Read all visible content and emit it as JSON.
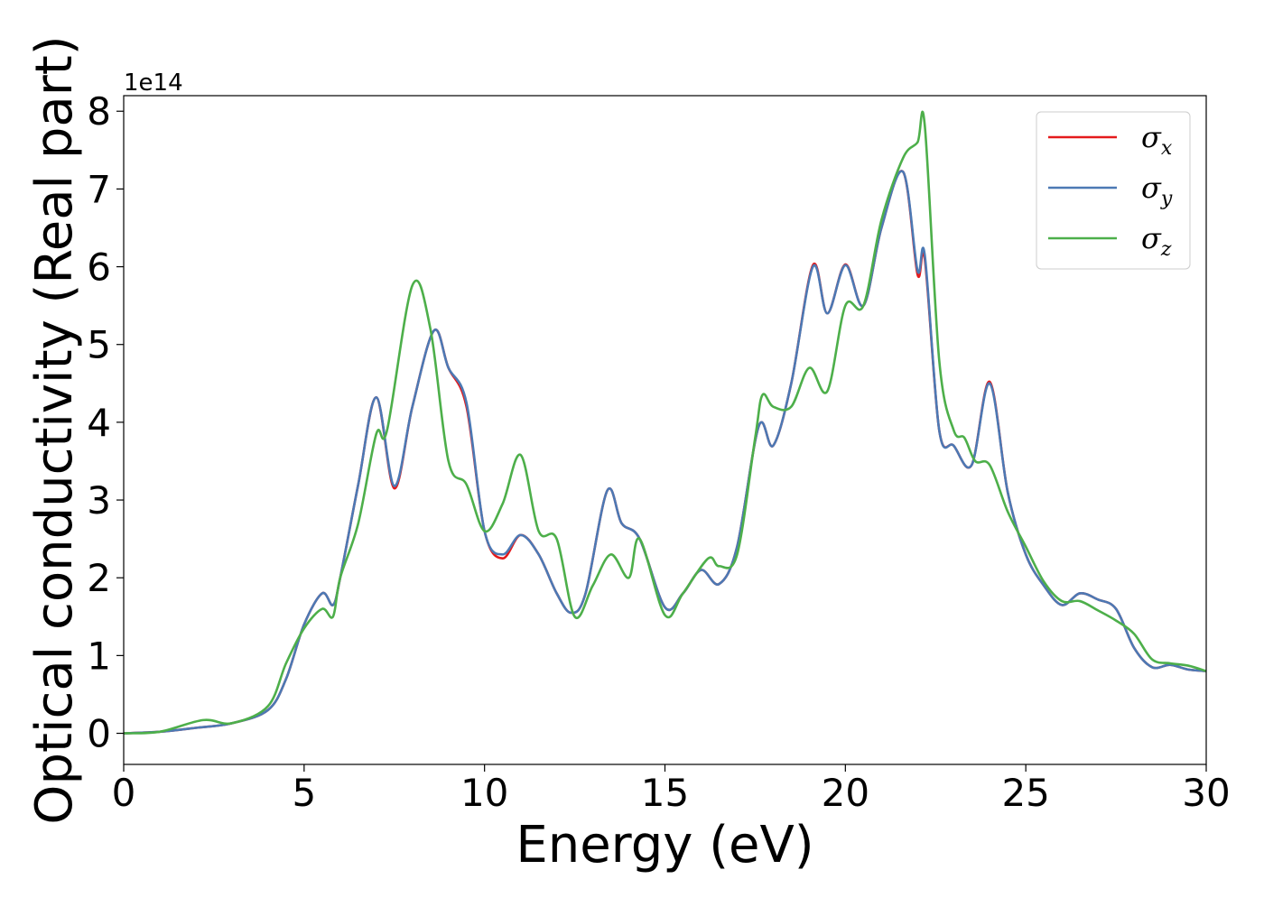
{
  "chart_data": {
    "type": "line",
    "xlabel": "Energy (eV)",
    "ylabel": "Optical conductivity (Real part)",
    "y_offset_text": "1e14",
    "xlim": [
      0,
      30
    ],
    "ylim": [
      -0.4,
      8.2
    ],
    "x_ticks": [
      0,
      5,
      10,
      15,
      20,
      25,
      30
    ],
    "y_ticks": [
      0,
      1,
      2,
      3,
      4,
      5,
      6,
      7,
      8
    ],
    "grid": false,
    "legend_position": "top-right",
    "series": [
      {
        "name": "σx",
        "name_base": "σ",
        "name_sub": "x",
        "color": "#e41a1c",
        "x": [
          0,
          1,
          2,
          3,
          4,
          4.5,
          5,
          5.5,
          5.8,
          6.0,
          6.5,
          7.0,
          7.5,
          8.0,
          8.6,
          9.0,
          9.5,
          10.0,
          10.5,
          11.0,
          11.5,
          12.0,
          12.4,
          12.8,
          13.4,
          13.8,
          14.3,
          15.0,
          15.5,
          16.0,
          16.5,
          17.0,
          17.6,
          18.0,
          18.5,
          19.1,
          19.5,
          20.0,
          20.5,
          21.0,
          21.6,
          22.0,
          22.2,
          22.6,
          23.0,
          23.5,
          24.0,
          24.5,
          25.0,
          25.5,
          26.0,
          26.5,
          27.0,
          27.5,
          28.0,
          28.5,
          29.0,
          29.5,
          30.0
        ],
        "values": [
          0,
          0.02,
          0.07,
          0.13,
          0.3,
          0.7,
          1.4,
          1.8,
          1.65,
          2.0,
          3.2,
          4.32,
          3.15,
          4.2,
          5.18,
          4.7,
          4.2,
          2.6,
          2.25,
          2.55,
          2.3,
          1.8,
          1.55,
          1.8,
          3.12,
          2.7,
          2.5,
          1.62,
          1.8,
          2.1,
          1.92,
          2.4,
          3.95,
          3.7,
          4.5,
          6.02,
          5.4,
          6.03,
          5.5,
          6.5,
          7.22,
          5.9,
          6.1,
          3.9,
          3.7,
          3.45,
          4.52,
          3.1,
          2.3,
          1.9,
          1.65,
          1.8,
          1.72,
          1.6,
          1.1,
          0.85,
          0.88,
          0.82,
          0.8
        ]
      },
      {
        "name": "σy",
        "name_base": "σ",
        "name_sub": "y",
        "color": "#4c79b4",
        "x": [
          0,
          1,
          2,
          3,
          4,
          4.5,
          5,
          5.5,
          5.8,
          6.0,
          6.5,
          7.0,
          7.5,
          8.0,
          8.6,
          9.0,
          9.5,
          10.0,
          10.5,
          11.0,
          11.5,
          12.0,
          12.4,
          12.8,
          13.4,
          13.8,
          14.3,
          15.0,
          15.5,
          16.0,
          16.5,
          17.0,
          17.6,
          18.0,
          18.5,
          19.1,
          19.5,
          20.0,
          20.5,
          21.0,
          21.6,
          22.0,
          22.2,
          22.6,
          23.0,
          23.5,
          24.0,
          24.5,
          25.0,
          25.5,
          26.0,
          26.5,
          27.0,
          27.5,
          28.0,
          28.5,
          29.0,
          29.5,
          30.0
        ],
        "values": [
          0,
          0.02,
          0.07,
          0.13,
          0.3,
          0.7,
          1.4,
          1.8,
          1.65,
          2.0,
          3.2,
          4.32,
          3.18,
          4.2,
          5.18,
          4.7,
          4.25,
          2.6,
          2.3,
          2.55,
          2.3,
          1.8,
          1.55,
          1.8,
          3.12,
          2.7,
          2.5,
          1.62,
          1.8,
          2.1,
          1.92,
          2.4,
          3.95,
          3.7,
          4.5,
          6.0,
          5.4,
          6.02,
          5.5,
          6.5,
          7.22,
          5.95,
          6.15,
          3.9,
          3.7,
          3.45,
          4.5,
          3.1,
          2.3,
          1.9,
          1.65,
          1.8,
          1.72,
          1.6,
          1.1,
          0.85,
          0.88,
          0.82,
          0.8
        ]
      },
      {
        "name": "σz",
        "name_base": "σ",
        "name_sub": "z",
        "color": "#4daf4a",
        "x": [
          0,
          1,
          2.2,
          3,
          4,
          4.5,
          5,
          5.5,
          5.8,
          6.0,
          6.5,
          7.0,
          7.3,
          8.0,
          8.5,
          9.0,
          9.5,
          10.0,
          10.5,
          11.0,
          11.5,
          12.0,
          12.5,
          13.0,
          13.5,
          14.0,
          14.3,
          15.0,
          15.5,
          16.2,
          16.5,
          17.0,
          17.5,
          17.7,
          18.0,
          18.5,
          19.0,
          19.5,
          20.0,
          20.5,
          21.0,
          21.6,
          22.0,
          22.2,
          22.6,
          23.0,
          23.3,
          23.6,
          24.0,
          24.5,
          25.0,
          25.5,
          26.0,
          26.5,
          27.0,
          27.5,
          28.0,
          28.5,
          29.0,
          29.5,
          30.0
        ],
        "values": [
          0,
          0.02,
          0.17,
          0.13,
          0.35,
          0.9,
          1.35,
          1.6,
          1.5,
          2.0,
          2.7,
          3.85,
          3.9,
          5.76,
          5.2,
          3.5,
          3.2,
          2.6,
          2.95,
          3.58,
          2.6,
          2.5,
          1.5,
          1.9,
          2.3,
          2.0,
          2.5,
          1.52,
          1.8,
          2.25,
          2.15,
          2.3,
          3.8,
          4.35,
          4.2,
          4.2,
          4.7,
          4.4,
          5.5,
          5.5,
          6.6,
          7.4,
          7.6,
          7.82,
          4.8,
          3.9,
          3.8,
          3.5,
          3.45,
          2.85,
          2.4,
          1.95,
          1.7,
          1.7,
          1.58,
          1.45,
          1.28,
          0.95,
          0.9,
          0.87,
          0.8
        ]
      }
    ]
  }
}
